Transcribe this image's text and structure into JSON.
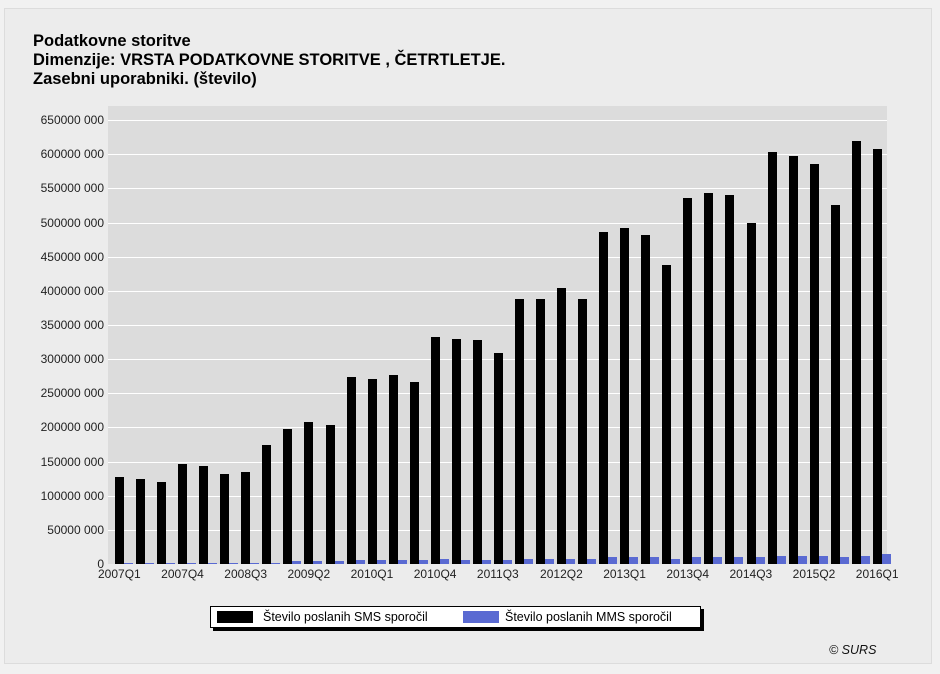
{
  "title": {
    "line1": "Podatkovne storitve",
    "line2": "Dimenzije: VRSTA PODATKOVNE STORITVE , ČETRTLETJE.",
    "line3": "Zasebni uporabniki. (število)"
  },
  "copyright": "© SURS",
  "colors": {
    "sms": "#000000",
    "mms": "#5a6ad2",
    "plot_bg": "#dcdcdc",
    "grid": "#ffffff"
  },
  "chart_data": {
    "type": "bar",
    "title": "Podatkovne storitve — Dimenzije: VRSTA PODATKOVNE STORITVE , ČETRTLETJE. Zasebni uporabniki. (število)",
    "xlabel": "",
    "ylabel": "",
    "ylim": [
      0,
      660000000
    ],
    "grid": true,
    "legend_position": "bottom",
    "yticks": [
      {
        "value": 0,
        "label": "0"
      },
      {
        "value": 50000000,
        "label": "50000 000"
      },
      {
        "value": 100000000,
        "label": "100000 000"
      },
      {
        "value": 150000000,
        "label": "150000 000"
      },
      {
        "value": 200000000,
        "label": "200000 000"
      },
      {
        "value": 250000000,
        "label": "250000 000"
      },
      {
        "value": 300000000,
        "label": "300000 000"
      },
      {
        "value": 350000000,
        "label": "350000 000"
      },
      {
        "value": 400000000,
        "label": "400000 000"
      },
      {
        "value": 450000000,
        "label": "450000 000"
      },
      {
        "value": 500000000,
        "label": "500000 000"
      },
      {
        "value": 550000000,
        "label": "550000 000"
      },
      {
        "value": 600000000,
        "label": "600000 000"
      },
      {
        "value": 650000000,
        "label": "650000 000"
      }
    ],
    "xtick_labels": [
      {
        "index": 0,
        "label": "2007Q1"
      },
      {
        "index": 3,
        "label": "2007Q4"
      },
      {
        "index": 6,
        "label": "2008Q3"
      },
      {
        "index": 9,
        "label": "2009Q2"
      },
      {
        "index": 12,
        "label": "2010Q1"
      },
      {
        "index": 15,
        "label": "2010Q4"
      },
      {
        "index": 18,
        "label": "2011Q3"
      },
      {
        "index": 21,
        "label": "2012Q2"
      },
      {
        "index": 24,
        "label": "2013Q1"
      },
      {
        "index": 27,
        "label": "2013Q4"
      },
      {
        "index": 30,
        "label": "2014Q3"
      },
      {
        "index": 33,
        "label": "2015Q2"
      },
      {
        "index": 36,
        "label": "2016Q1"
      }
    ],
    "categories": [
      "2007Q1",
      "2007Q2",
      "2007Q3",
      "2007Q4",
      "2008Q1",
      "2008Q2",
      "2008Q3",
      "2008Q4",
      "2009Q1",
      "2009Q2",
      "2009Q3",
      "2009Q4",
      "2010Q1",
      "2010Q2",
      "2010Q3",
      "2010Q4",
      "2011Q1",
      "2011Q2",
      "2011Q3",
      "2011Q4",
      "2012Q1",
      "2012Q2",
      "2012Q3",
      "2012Q4",
      "2013Q1",
      "2013Q2",
      "2013Q3",
      "2013Q4",
      "2014Q1",
      "2014Q2",
      "2014Q3",
      "2014Q4",
      "2015Q1",
      "2015Q2",
      "2015Q3",
      "2015Q4",
      "2016Q1"
    ],
    "series": [
      {
        "name": "Število poslanih SMS sporočil",
        "color": "#000000",
        "values": [
          127000000,
          124000000,
          120000000,
          146000000,
          143000000,
          132000000,
          134000000,
          174000000,
          198000000,
          208000000,
          203000000,
          274000000,
          271000000,
          277000000,
          266000000,
          332000000,
          329000000,
          328000000,
          309000000,
          388000000,
          388000000,
          404000000,
          388000000,
          486000000,
          492000000,
          482000000,
          438000000,
          536000000,
          543000000,
          541000000,
          500000000,
          603000000,
          597000000,
          585000000,
          525000000,
          620000000,
          608000000
        ]
      },
      {
        "name": "Število poslanih MMS sporočil",
        "color": "#5a6ad2",
        "values": [
          1000000,
          1000000,
          1000000,
          1500000,
          1500000,
          1500000,
          2000000,
          2000000,
          4000000,
          4000000,
          4000000,
          6000000,
          6000000,
          6000000,
          6000000,
          8000000,
          6000000,
          6000000,
          6000000,
          8000000,
          8000000,
          8000000,
          8000000,
          10000000,
          10000000,
          10000000,
          8000000,
          10000000,
          10000000,
          10000000,
          10000000,
          12000000,
          12000000,
          12000000,
          10000000,
          12000000,
          14000000
        ]
      }
    ]
  },
  "legend": {
    "items": [
      {
        "label": "Število poslanih SMS sporočil",
        "color": "#000000"
      },
      {
        "label": "Število poslanih MMS sporočil",
        "color": "#5a6ad2"
      }
    ]
  }
}
